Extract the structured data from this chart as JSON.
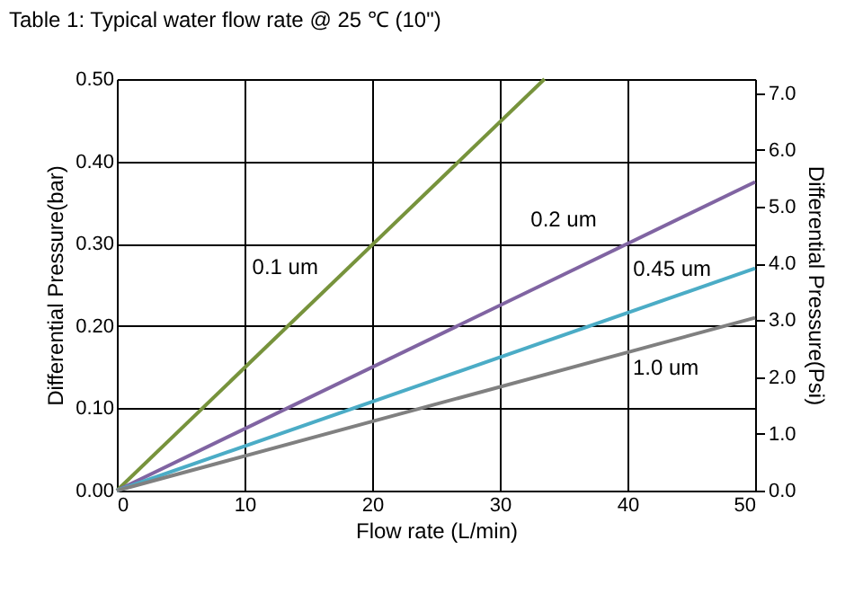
{
  "chart_data": {
    "type": "line",
    "title": "Table 1:  Typical water flow rate @ 25 ℃ (10\")",
    "xlabel": "Flow rate (L/min)",
    "ylabel": "Differential Pressure(bar)",
    "y2label": "Differential Pressure(Psi)",
    "series": [
      {
        "name": "0.1 um",
        "color": "#77933c",
        "x": [
          0,
          33.5
        ],
        "values": [
          0,
          0.5
        ]
      },
      {
        "name": "0.2 um",
        "color": "#8064a2",
        "x": [
          0,
          50
        ],
        "values": [
          0,
          0.375
        ]
      },
      {
        "name": "0.45 um",
        "color": "#4bacc6",
        "x": [
          0,
          50
        ],
        "values": [
          0,
          0.27
        ]
      },
      {
        "name": "1.0 um",
        "color": "#808080",
        "x": [
          0,
          50
        ],
        "values": [
          0,
          0.21
        ]
      }
    ],
    "xlim": [
      0,
      50
    ],
    "xticks": [
      0,
      10,
      20,
      30,
      40,
      50
    ],
    "ylim": [
      0,
      0.5
    ],
    "yticks": [
      {
        "value": 0,
        "label": "0.00"
      },
      {
        "value": 0.1,
        "label": "0.10"
      },
      {
        "value": 0.2,
        "label": "0.20"
      },
      {
        "value": 0.3,
        "label": "0.30"
      },
      {
        "value": 0.4,
        "label": "0.40"
      },
      {
        "value": 0.5,
        "label": "0.50"
      }
    ],
    "y2lim": [
      0,
      7.25
    ],
    "y2ticks": [
      {
        "value": 0,
        "label": "0.0"
      },
      {
        "value": 1,
        "label": "1.0"
      },
      {
        "value": 2,
        "label": "2.0"
      },
      {
        "value": 3,
        "label": "3.0"
      },
      {
        "value": 4,
        "label": "4.0"
      },
      {
        "value": 5,
        "label": "5.0"
      },
      {
        "value": 6,
        "label": "6.0"
      },
      {
        "value": 7,
        "label": "7.0"
      }
    ],
    "grid": true,
    "legend": false,
    "marker": "none",
    "line_style": "solid"
  }
}
